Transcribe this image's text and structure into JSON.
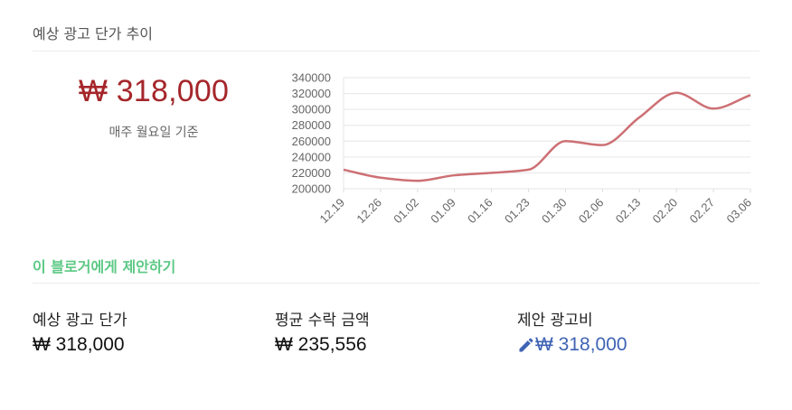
{
  "section": {
    "title": "예상 광고 단가 추이"
  },
  "summary": {
    "price": "₩ 318,000",
    "note": "매주 월요일 기준"
  },
  "proposal": {
    "link_label": "이 블로거에게 제안하기"
  },
  "stats": [
    {
      "label": "예상 광고 단가",
      "value": "₩ 318,000"
    },
    {
      "label": "평균 수락 금액",
      "value": "₩ 235,556"
    },
    {
      "label": "제안 광고비",
      "value": "₩ 318,000"
    }
  ],
  "icons": {
    "edit": "pencil-icon"
  },
  "colors": {
    "line": "#cd7074",
    "price": "#a5262a",
    "link": "#3f63b4",
    "accent": "#5cc985"
  },
  "chart_data": {
    "type": "line",
    "title": "",
    "xlabel": "",
    "ylabel": "",
    "ylim": [
      200000,
      340000
    ],
    "yticks": [
      340000,
      320000,
      300000,
      280000,
      260000,
      240000,
      220000,
      200000
    ],
    "x": [
      "12.19",
      "12.26",
      "01.02",
      "01.09",
      "01.16",
      "01.23",
      "01.30",
      "02.06",
      "02.13",
      "02.20",
      "02.27",
      "03.06"
    ],
    "grid": true,
    "series": [
      {
        "values": [
          224000,
          214000,
          210000,
          217000,
          220000,
          224000,
          260000,
          255000,
          290000,
          321000,
          301000,
          318000
        ]
      }
    ]
  }
}
